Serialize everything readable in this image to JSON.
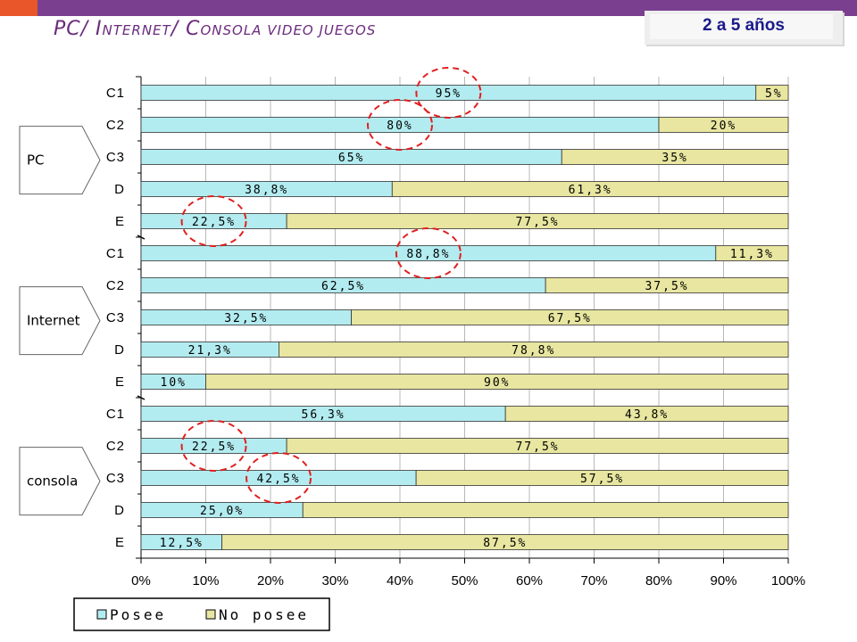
{
  "header": {
    "title_parts": [
      "PC/ I",
      "NTERNET",
      "/ C",
      "ONSOLA VIDEO JUEGOS"
    ],
    "age_label": "2 a 5 años"
  },
  "colors": {
    "posee": "#b3ecf0",
    "no_posee": "#e8e6a0",
    "header_bar": "#7a3f8f",
    "header_accent": "#e8562a",
    "highlight_circle": "#e02020"
  },
  "chart_data": {
    "type": "bar",
    "orientation": "horizontal",
    "stacked": "percent",
    "xlim": [
      0,
      100
    ],
    "x_ticks": [
      "0%",
      "10%",
      "20%",
      "30%",
      "40%",
      "50%",
      "60%",
      "70%",
      "80%",
      "90%",
      "100%"
    ],
    "legend": {
      "entries": [
        "Posee",
        "No posee"
      ],
      "position": "bottom"
    },
    "grid": true,
    "groups": [
      {
        "name": "PC",
        "categories": [
          "C1",
          "C2",
          "C3",
          "D",
          "E"
        ],
        "series": [
          {
            "name": "Posee",
            "values": [
              95,
              80,
              65,
              38.8,
              22.5
            ],
            "labels": [
              "95%",
              "80%",
              "65%",
              "38,8%",
              "22,5%"
            ]
          },
          {
            "name": "No posee",
            "values": [
              5,
              20,
              35,
              61.3,
              77.5
            ],
            "labels": [
              "5%",
              "20%",
              "35%",
              "61,3%",
              "77,5%"
            ]
          }
        ],
        "highlighted": [
          {
            "series": "Posee",
            "category": "C1"
          },
          {
            "series": "Posee",
            "category": "C2"
          },
          {
            "series": "Posee",
            "category": "E"
          }
        ]
      },
      {
        "name": "Internet",
        "categories": [
          "C1",
          "C2",
          "C3",
          "D",
          "E"
        ],
        "series": [
          {
            "name": "Posee",
            "values": [
              88.8,
              62.5,
              32.5,
              21.3,
              10
            ],
            "labels": [
              "88,8%",
              "62,5%",
              "32,5%",
              "21,3%",
              "10%"
            ]
          },
          {
            "name": "No posee",
            "values": [
              11.3,
              37.5,
              67.5,
              78.8,
              90
            ],
            "labels": [
              "11,3%",
              "37,5%",
              "67,5%",
              "78,8%",
              "90%"
            ]
          }
        ],
        "highlighted": [
          {
            "series": "Posee",
            "category": "C1"
          }
        ]
      },
      {
        "name": "consola",
        "categories": [
          "C1",
          "C2",
          "C3",
          "D",
          "E"
        ],
        "series": [
          {
            "name": "Posee",
            "values": [
              56.3,
              22.5,
              42.5,
              25.0,
              12.5
            ],
            "labels": [
              "56,3%",
              "22,5%",
              "42,5%",
              "25,0%",
              "12,5%"
            ]
          },
          {
            "name": "No posee",
            "values": [
              43.8,
              77.5,
              57.5,
              75.0,
              87.5
            ],
            "labels": [
              "43,8%",
              "77,5%",
              "57,5%",
              "",
              "87,5%"
            ]
          }
        ],
        "highlighted": [
          {
            "series": "Posee",
            "category": "C2"
          },
          {
            "series": "Posee",
            "category": "C3"
          }
        ]
      }
    ]
  }
}
